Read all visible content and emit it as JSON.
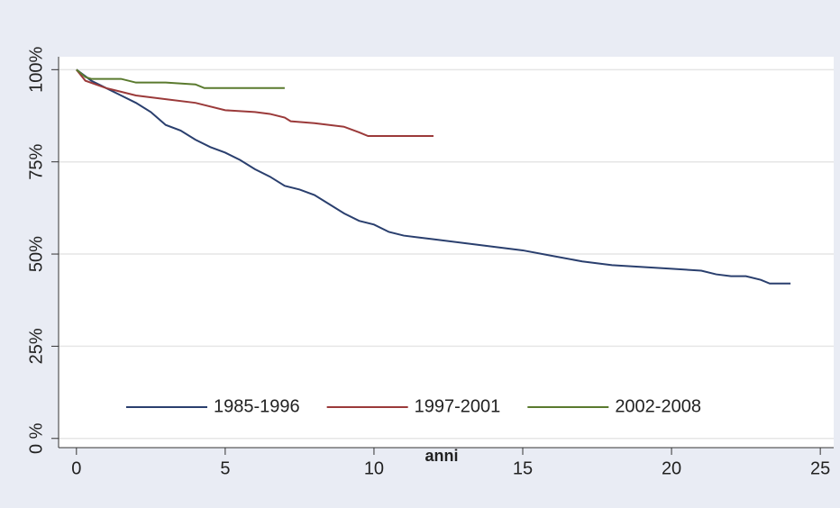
{
  "chart_data": {
    "type": "line",
    "x_label": "anni",
    "series": [
      {
        "name": "1985-1996",
        "color": "#2a3f6e",
        "x": [
          0,
          0.5,
          1,
          1.5,
          2,
          2.5,
          3,
          3.5,
          4,
          4.5,
          5,
          5.5,
          6,
          6.5,
          7,
          7.5,
          8,
          8.5,
          9,
          9.5,
          10,
          10.5,
          11,
          11.5,
          12,
          13,
          14,
          15,
          16,
          17,
          18,
          19,
          20,
          21,
          21.5,
          22,
          22.5,
          23,
          23.3,
          24
        ],
        "values": [
          100,
          97,
          95,
          93,
          91,
          88.5,
          85,
          83.5,
          81,
          79,
          77.5,
          75.5,
          73,
          71,
          68.5,
          67.5,
          66,
          63.5,
          61,
          59,
          58,
          56,
          55,
          54.5,
          54,
          53,
          52,
          51,
          49.5,
          48,
          47,
          46.5,
          46,
          45.5,
          44.5,
          44,
          44,
          43,
          42,
          42
        ]
      },
      {
        "name": "1997-2001",
        "color": "#9b3a3a",
        "x": [
          0,
          0.3,
          1,
          2,
          3,
          4,
          5,
          6,
          6.5,
          7,
          7.2,
          8,
          9,
          9.5,
          9.8,
          12
        ],
        "values": [
          100,
          97,
          95,
          93,
          92,
          91,
          89,
          88.5,
          88,
          87,
          86,
          85.5,
          84.5,
          83,
          82,
          82
        ]
      },
      {
        "name": "2002-2008",
        "color": "#5a7a2e",
        "x": [
          0,
          0.3,
          0.5,
          1,
          1.5,
          2,
          3,
          4,
          4.3,
          7
        ],
        "values": [
          100,
          98,
          97.5,
          97.5,
          97.5,
          96.5,
          96.5,
          96,
          95,
          95
        ]
      }
    ],
    "xlim": [
      -0.6,
      25.45
    ],
    "xticks": [
      0,
      5,
      10,
      15,
      20,
      25
    ],
    "ylim": [
      -2.5,
      103.5
    ],
    "yticks": [
      {
        "value": 0,
        "label": "0 %"
      },
      {
        "value": 25,
        "label": "25%"
      },
      {
        "value": 50,
        "label": "50%"
      },
      {
        "value": 75,
        "label": "75%"
      },
      {
        "value": 100,
        "label": "100%"
      }
    ],
    "grid": true,
    "legend": "bottom"
  }
}
